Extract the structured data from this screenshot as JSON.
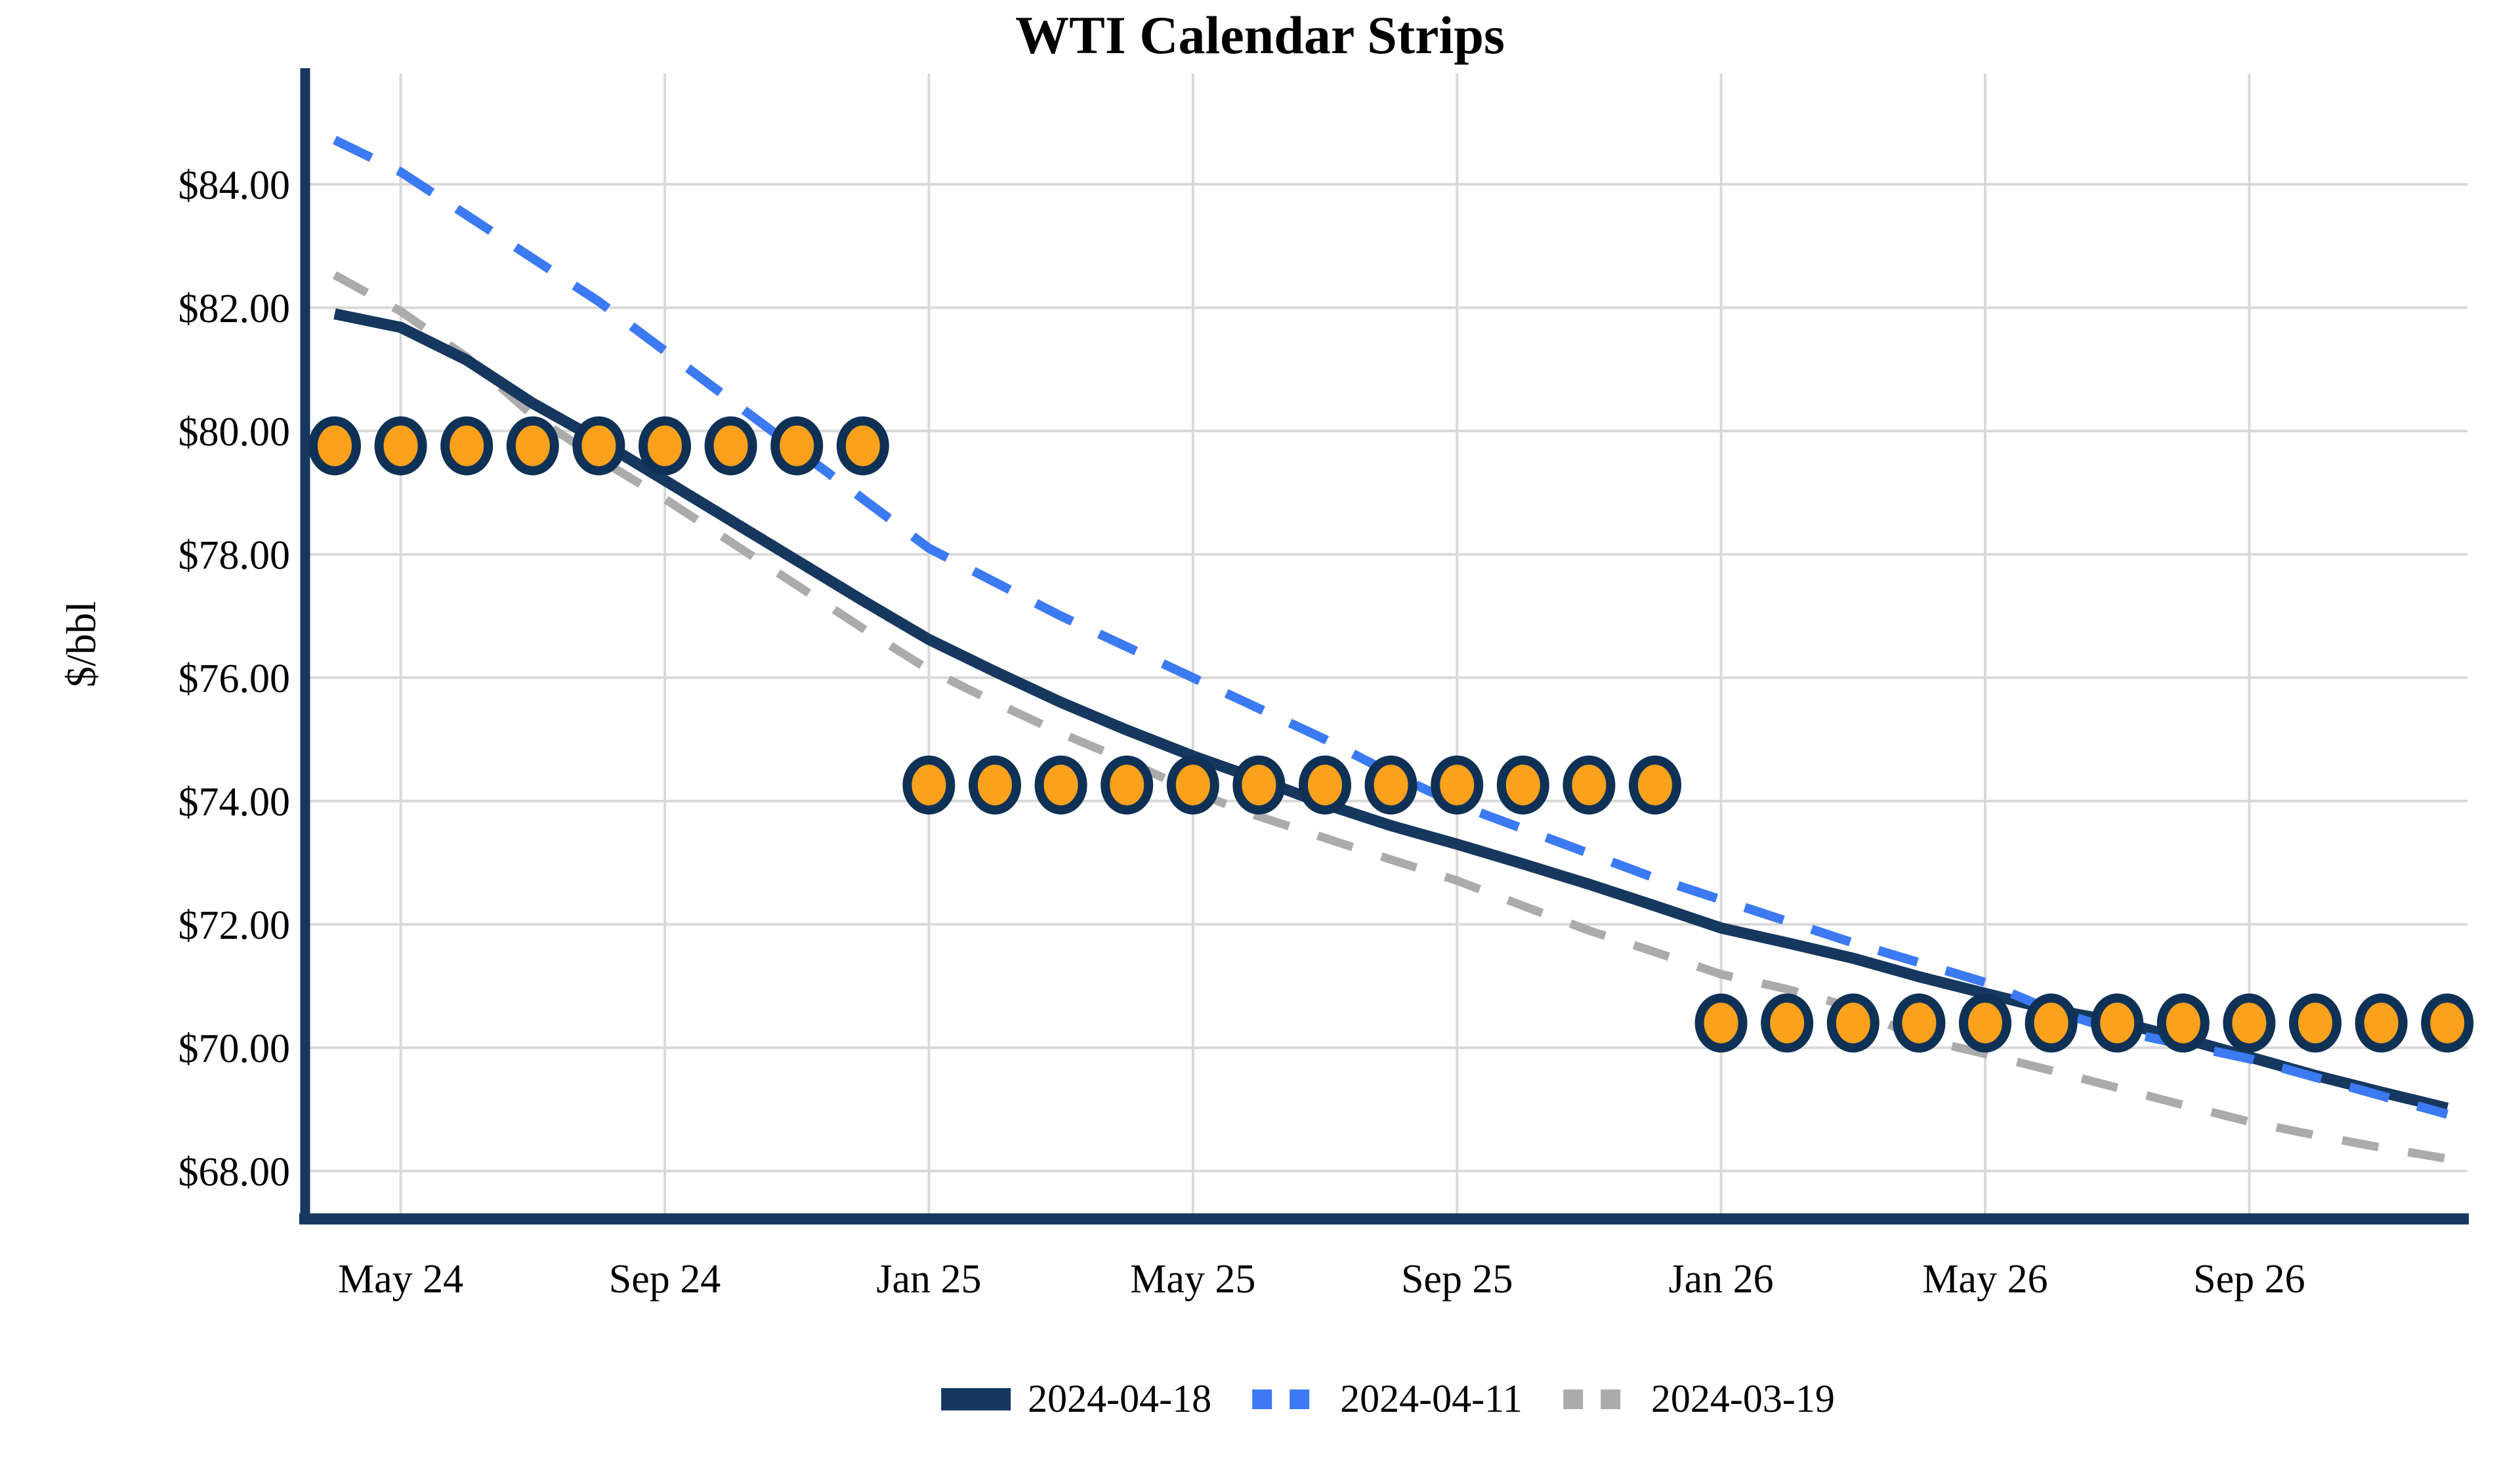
{
  "chart_data": {
    "type": "line",
    "title": "WTI Calendar Strips",
    "ylabel": "$/bbl",
    "xlabel": "",
    "grid": true,
    "legend_position": "bottom-center",
    "ylim": [
      67.2,
      85.8
    ],
    "x_months": [
      "Apr 24",
      "May 24",
      "Jun 24",
      "Jul 24",
      "Aug 24",
      "Sep 24",
      "Oct 24",
      "Nov 24",
      "Dec 24",
      "Jan 25",
      "Feb 25",
      "Mar 25",
      "Apr 25",
      "May 25",
      "Jun 25",
      "Jul 25",
      "Aug 25",
      "Sep 25",
      "Oct 25",
      "Nov 25",
      "Dec 25",
      "Jan 26",
      "Feb 26",
      "Mar 26",
      "Apr 26",
      "May 26",
      "Jun 26",
      "Jul 26",
      "Aug 26",
      "Sep 26",
      "Oct 26",
      "Nov 26",
      "Dec 26"
    ],
    "x_ticks": [
      {
        "label": "May 24",
        "month_index": 1
      },
      {
        "label": "Sep 24",
        "month_index": 5
      },
      {
        "label": "Jan 25",
        "month_index": 9
      },
      {
        "label": "May 25",
        "month_index": 13
      },
      {
        "label": "Sep 25",
        "month_index": 17
      },
      {
        "label": "Jan 26",
        "month_index": 21
      },
      {
        "label": "May 26",
        "month_index": 25
      },
      {
        "label": "Sep 26",
        "month_index": 29
      }
    ],
    "y_ticks": [
      {
        "label": "$84.00",
        "value": 84
      },
      {
        "label": "$82.00",
        "value": 82
      },
      {
        "label": "$80.00",
        "value": 80
      },
      {
        "label": "$78.00",
        "value": 78
      },
      {
        "label": "$76.00",
        "value": 76
      },
      {
        "label": "$74.00",
        "value": 74
      },
      {
        "label": "$72.00",
        "value": 72
      },
      {
        "label": "$70.00",
        "value": 70
      },
      {
        "label": "$68.00",
        "value": 68
      }
    ],
    "series": [
      {
        "name": "2024-04-18",
        "style": "solid",
        "color": "#16375e",
        "values": [
          81.9,
          81.68,
          81.15,
          80.45,
          79.85,
          79.2,
          78.55,
          77.9,
          77.25,
          76.62,
          76.1,
          75.6,
          75.15,
          74.73,
          74.35,
          73.95,
          73.6,
          73.3,
          72.98,
          72.65,
          72.3,
          71.94,
          71.7,
          71.45,
          71.15,
          70.88,
          70.62,
          70.42,
          70.15,
          69.85,
          69.55,
          69.28,
          69.02
        ]
      },
      {
        "name": "2024-04-11",
        "style": "dashed",
        "color": "#3b7af3",
        "values": [
          84.72,
          84.2,
          83.5,
          82.8,
          82.1,
          81.3,
          80.5,
          79.7,
          78.9,
          78.1,
          77.55,
          77.0,
          76.5,
          76.0,
          75.5,
          75.0,
          74.45,
          73.95,
          73.55,
          73.15,
          72.75,
          72.4,
          72.05,
          71.7,
          71.38,
          71.06,
          70.61,
          70.28,
          70.05,
          69.82,
          69.52,
          69.22,
          68.92
        ]
      },
      {
        "name": "2024-03-19",
        "style": "dashed",
        "color": "#ababab",
        "values": [
          82.53,
          81.94,
          81.2,
          80.25,
          79.55,
          78.9,
          78.2,
          77.5,
          76.8,
          76.13,
          75.6,
          75.1,
          74.65,
          74.15,
          73.75,
          73.4,
          73.05,
          72.71,
          72.3,
          71.9,
          71.55,
          71.19,
          70.95,
          70.65,
          70.15,
          69.9,
          69.63,
          69.35,
          69.07,
          68.8,
          68.58,
          68.38,
          68.2
        ]
      }
    ],
    "strip_markers": {
      "fill_color": "#fba11b",
      "border_color": "#0f3156",
      "bands": [
        {
          "start_month_index": 0,
          "end_month_index": 8,
          "value": 79.76
        },
        {
          "start_month_index": 9,
          "end_month_index": 20,
          "value": 74.26
        },
        {
          "start_month_index": 21,
          "end_month_index": 32,
          "value": 70.4
        }
      ]
    },
    "colors": {
      "axis": "#16375e",
      "gridline": "#d9d9d9",
      "background": "#ffffff",
      "text": "#000000"
    }
  }
}
